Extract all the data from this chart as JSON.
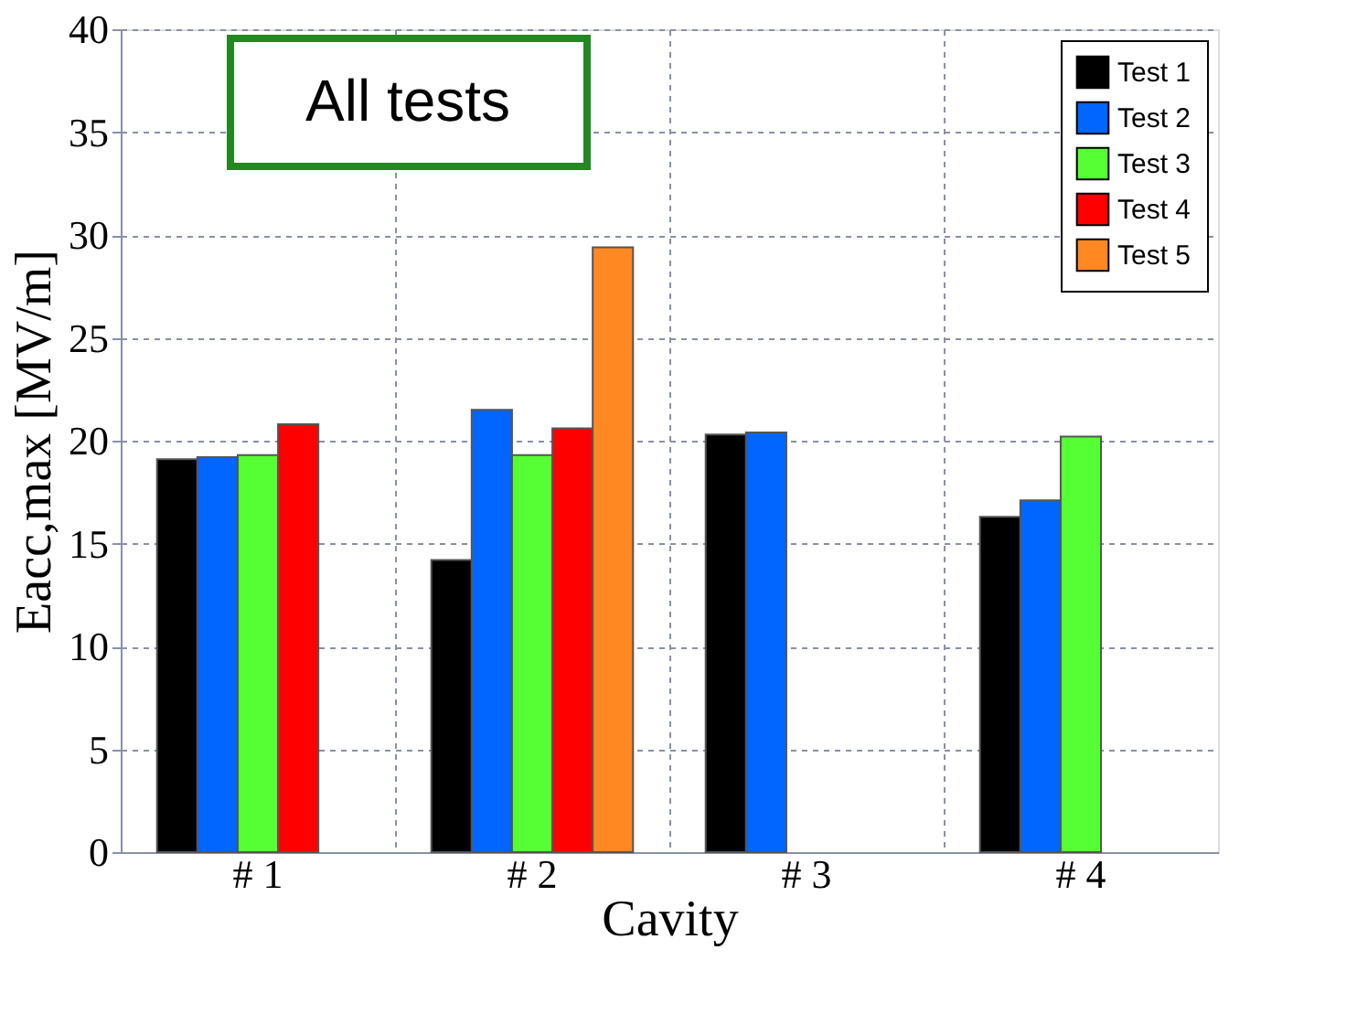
{
  "chart_data": {
    "type": "bar",
    "categories": [
      "# 1",
      "# 2",
      "# 3",
      "# 4"
    ],
    "series": [
      {
        "name": "Test 1",
        "color": "#000000",
        "values": [
          19.1,
          14.2,
          20.3,
          16.3
        ]
      },
      {
        "name": "Test 2",
        "color": "#0066ff",
        "values": [
          19.2,
          21.5,
          20.4,
          17.1
        ]
      },
      {
        "name": "Test 3",
        "color": "#55ff33",
        "values": [
          19.3,
          19.3,
          null,
          20.2
        ]
      },
      {
        "name": "Test 4",
        "color": "#ff0000",
        "values": [
          20.8,
          20.6,
          null,
          null
        ]
      },
      {
        "name": "Test 5",
        "color": "#ff8822",
        "values": [
          null,
          29.4,
          null,
          null
        ]
      }
    ],
    "xlabel": "Cavity",
    "ylabel": "Eacc,max  [MV/m]",
    "ylim": [
      0,
      40
    ],
    "yticks": [
      0,
      5,
      10,
      15,
      20,
      25,
      30,
      35,
      40
    ],
    "annotations": [
      "All tests"
    ],
    "grid": true,
    "legend": "top right"
  }
}
